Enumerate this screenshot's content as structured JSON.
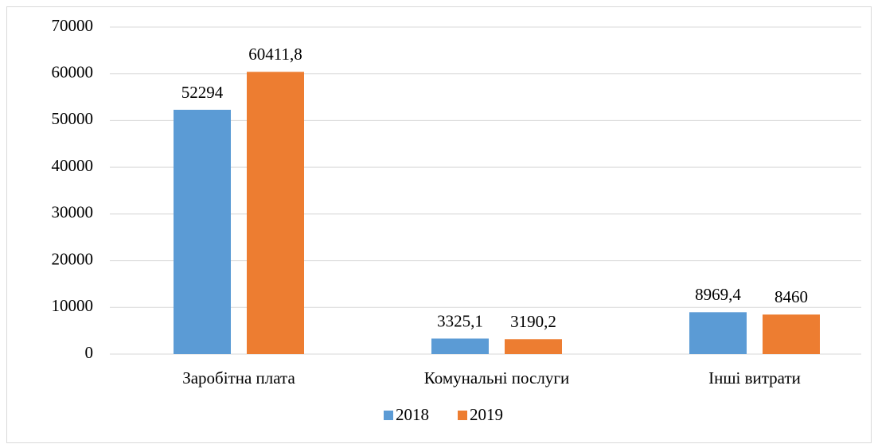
{
  "chart_data": {
    "type": "bar",
    "categories": [
      "Заробітна плата",
      "Комунальні послуги",
      "Інші витрати"
    ],
    "series": [
      {
        "name": "2018",
        "color": "#5b9bd5",
        "values": [
          52294,
          3325.1,
          8969.4
        ],
        "value_labels": [
          "52294",
          "3325,1",
          "8969,4"
        ]
      },
      {
        "name": "2019",
        "color": "#ed7d31",
        "values": [
          60411.8,
          3190.2,
          8460
        ],
        "value_labels": [
          "60411,8",
          "3190,2",
          "8460"
        ]
      }
    ],
    "ylim": [
      0,
      70000
    ],
    "yticks": [
      0,
      10000,
      20000,
      30000,
      40000,
      50000,
      60000,
      70000
    ],
    "grid": true,
    "legend": "bottom"
  }
}
